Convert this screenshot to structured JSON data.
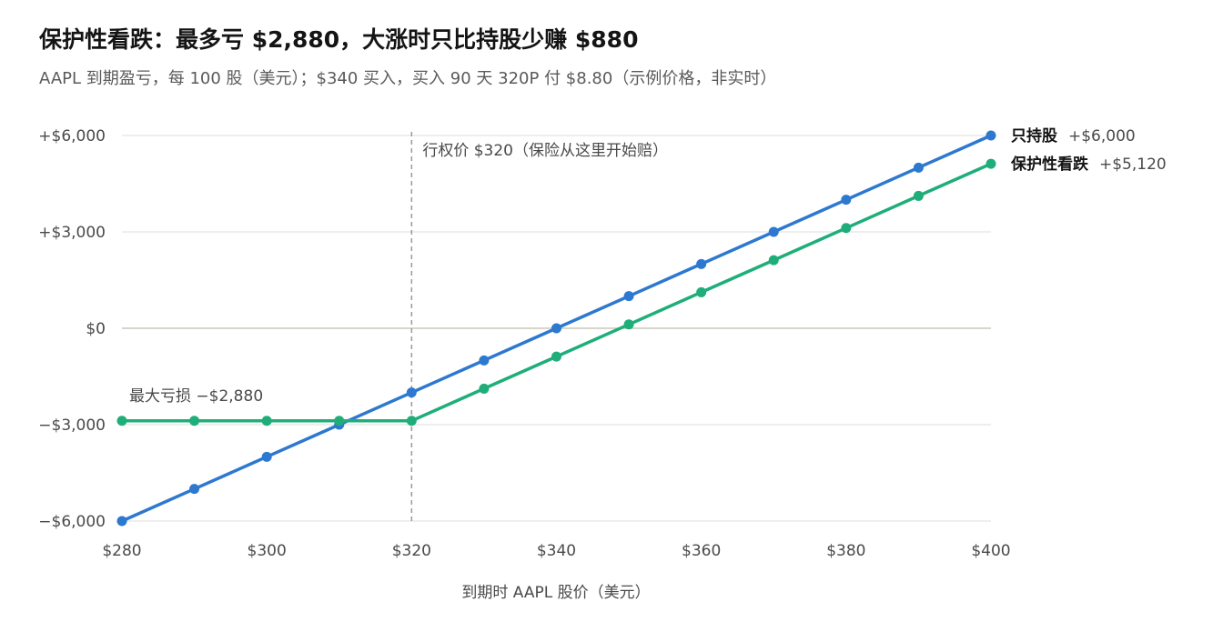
{
  "header": {
    "title": "保护性看跌：最多亏 $2,880，大涨时只比持股少赚 $880",
    "subtitle": "AAPL 到期盈亏，每 100 股（美元）；$340 买入，买入 90 天 320P 付 $8.80（示例价格，非实时）"
  },
  "chart_data": {
    "type": "line",
    "title": "保护性看跌：最多亏 $2,880，大涨时只比持股少赚 $880",
    "subtitle": "AAPL 到期盈亏，每 100 股（美元）；$340 买入，买入 90 天 320P 付 $8.80（示例价格，非实时）",
    "xlabel": "到期时 AAPL 股价（美元）",
    "ylabel": "",
    "xlim": [
      280,
      400
    ],
    "ylim": [
      -6000,
      6000
    ],
    "x": [
      280,
      290,
      300,
      310,
      320,
      330,
      340,
      350,
      360,
      370,
      380,
      390,
      400
    ],
    "x_ticks": [
      280,
      300,
      320,
      340,
      360,
      380,
      400
    ],
    "x_tick_labels": [
      "$280",
      "$300",
      "$320",
      "$340",
      "$360",
      "$380",
      "$400"
    ],
    "y_ticks": [
      6000,
      3000,
      0,
      -3000,
      -6000
    ],
    "y_tick_labels": [
      "+$6,000",
      "+$3,000",
      "$0",
      "−$3,000",
      "−$6,000"
    ],
    "grid": true,
    "series": [
      {
        "name": "只持股",
        "end_label": "+$6,000",
        "color": "#2d78d0",
        "values": [
          -6000,
          -5000,
          -4000,
          -3000,
          -2000,
          -1000,
          0,
          1000,
          2000,
          3000,
          4000,
          5000,
          6000
        ]
      },
      {
        "name": "保护性看跌",
        "end_label": "+$5,120",
        "color": "#1fae7a",
        "values": [
          -2880,
          -2880,
          -2880,
          -2880,
          -2880,
          -1880,
          -880,
          120,
          1120,
          2120,
          3120,
          4120,
          5120
        ]
      }
    ],
    "annotations": [
      {
        "text": "行权价 $320（保险从这里开始赔）",
        "x": 320,
        "type": "vline"
      },
      {
        "text": "最大亏损 −$2,880",
        "x": 280,
        "y": -2880,
        "type": "label"
      }
    ],
    "colors": {
      "grid": "#e3e3e3",
      "zero_line": "#c8c8b8",
      "strike_line": "#9a9a9a"
    }
  }
}
